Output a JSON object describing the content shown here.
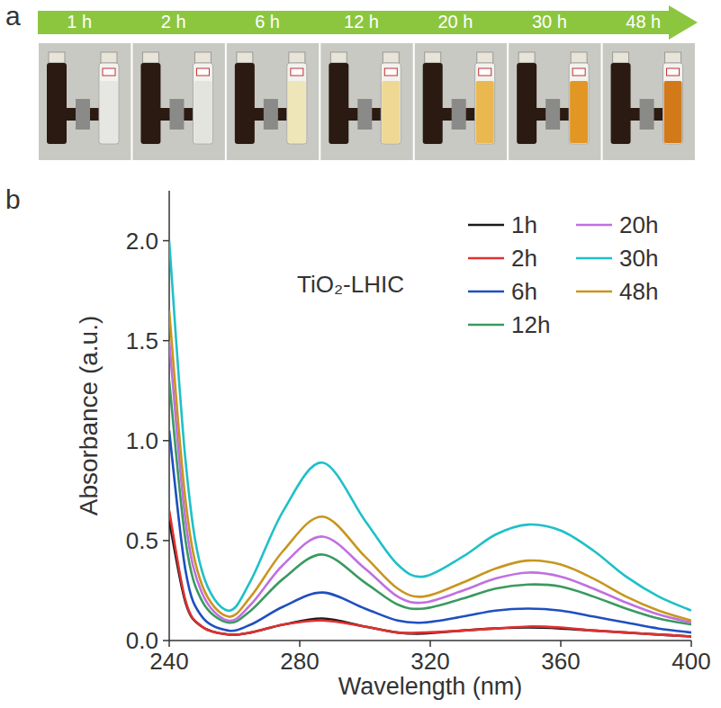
{
  "photo_strip": {
    "label": "a",
    "times": [
      "1 h",
      "2 h",
      "6 h",
      "12 h",
      "20 h",
      "30 h",
      "48 h"
    ],
    "solution_colors": [
      "#e6e6e2",
      "#e4e4de",
      "#eee6b8",
      "#efd894",
      "#eab84e",
      "#e29624",
      "#d27a1a"
    ]
  },
  "chart_data": {
    "panel_label": "b",
    "type": "line",
    "title": "TiO₂-LHIC",
    "x_label": "Wavelength (nm)",
    "y_label": "Absorbance (a.u.)",
    "x": [
      240,
      245,
      250,
      258,
      265,
      275,
      287,
      300,
      310,
      318,
      330,
      340,
      350,
      360,
      370,
      380,
      390,
      400
    ],
    "series": [
      {
        "name": "1h",
        "color": "#1a1a1a",
        "values": [
          0.6,
          0.19,
          0.07,
          0.03,
          0.04,
          0.08,
          0.11,
          0.07,
          0.04,
          0.035,
          0.05,
          0.06,
          0.065,
          0.06,
          0.05,
          0.04,
          0.03,
          0.02
        ]
      },
      {
        "name": "2h",
        "color": "#e03030",
        "values": [
          0.65,
          0.2,
          0.07,
          0.03,
          0.04,
          0.08,
          0.1,
          0.07,
          0.04,
          0.04,
          0.05,
          0.06,
          0.07,
          0.065,
          0.05,
          0.04,
          0.03,
          0.02
        ]
      },
      {
        "name": "6h",
        "color": "#1f4fbf",
        "values": [
          1.05,
          0.35,
          0.12,
          0.05,
          0.08,
          0.17,
          0.24,
          0.16,
          0.1,
          0.09,
          0.12,
          0.15,
          0.16,
          0.15,
          0.12,
          0.09,
          0.06,
          0.04
        ]
      },
      {
        "name": "12h",
        "color": "#3a9a60",
        "values": [
          1.3,
          0.5,
          0.2,
          0.09,
          0.15,
          0.31,
          0.43,
          0.29,
          0.18,
          0.16,
          0.21,
          0.26,
          0.28,
          0.27,
          0.22,
          0.16,
          0.11,
          0.08
        ]
      },
      {
        "name": "20h",
        "color": "#c070e0",
        "values": [
          1.5,
          0.6,
          0.24,
          0.1,
          0.18,
          0.38,
          0.52,
          0.36,
          0.22,
          0.19,
          0.25,
          0.31,
          0.34,
          0.32,
          0.26,
          0.19,
          0.13,
          0.09
        ]
      },
      {
        "name": "30h",
        "color": "#1fc0c8",
        "values": [
          2.0,
          0.9,
          0.35,
          0.15,
          0.3,
          0.65,
          0.89,
          0.6,
          0.38,
          0.32,
          0.42,
          0.53,
          0.58,
          0.55,
          0.45,
          0.32,
          0.22,
          0.15
        ]
      },
      {
        "name": "48h",
        "color": "#c8961e",
        "values": [
          1.65,
          0.7,
          0.28,
          0.12,
          0.22,
          0.45,
          0.62,
          0.42,
          0.26,
          0.22,
          0.29,
          0.36,
          0.4,
          0.38,
          0.31,
          0.22,
          0.15,
          0.1
        ]
      }
    ],
    "xlim": [
      240,
      400
    ],
    "xticks": [
      240,
      280,
      320,
      360,
      400
    ],
    "ylim": [
      0,
      2.25
    ],
    "yticks": [
      {
        "value": 0,
        "label": "0.0"
      },
      {
        "value": 0.5,
        "label": "0.5"
      },
      {
        "value": 1,
        "label": "1.0"
      },
      {
        "value": 1.5,
        "label": "1.5"
      },
      {
        "value": 2,
        "label": "2.0"
      }
    ],
    "grid": false,
    "legend": "top-right"
  }
}
